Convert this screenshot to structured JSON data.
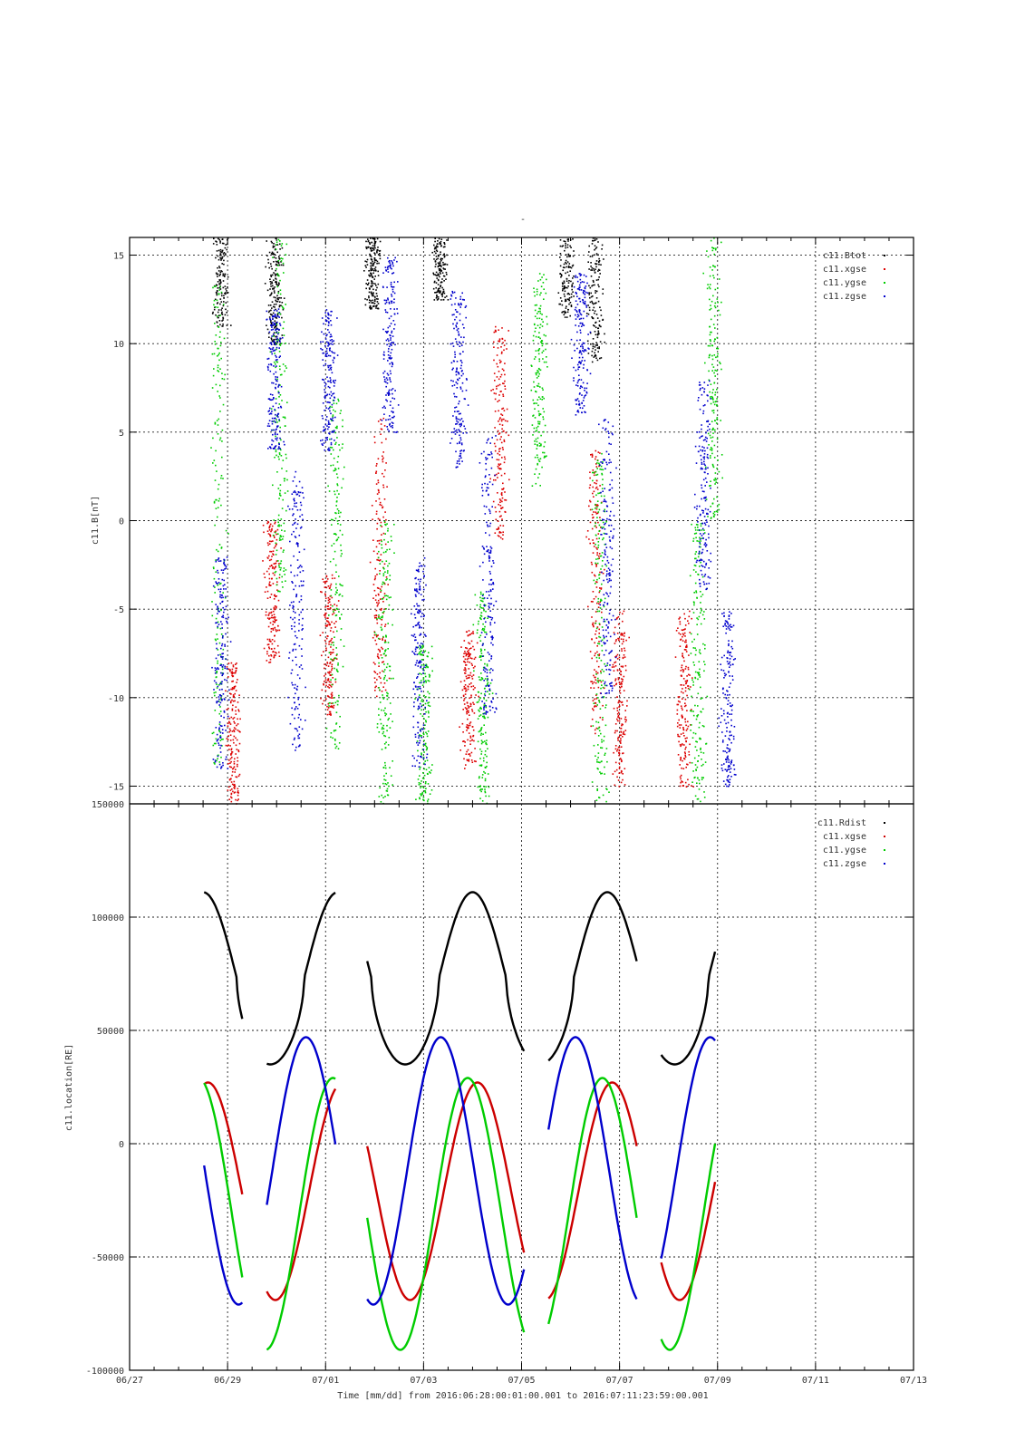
{
  "figure": {
    "title": "-",
    "xlabel": "Time [mm/dd]  from 2016:06:28:00:01:00.001  to  2016:07:11:23:59:00.001"
  },
  "chart_data": [
    {
      "type": "scatter",
      "ylabel": "c11.B[nT]",
      "xlim": [
        "06/27",
        "07/13"
      ],
      "ylim": [
        -16,
        16
      ],
      "yticks": [
        -15,
        -10,
        -5,
        0,
        5,
        10,
        15
      ],
      "legend_position": "top-right",
      "series": [
        {
          "name": "c11.Btot",
          "color": "#000000",
          "clusters": [
            [
              1.85,
              14,
              3
            ],
            [
              2.95,
              13,
              3
            ],
            [
              4.95,
              14,
              2
            ],
            [
              6.3,
              14.5,
              2
            ],
            [
              8.9,
              14.5,
              3
            ],
            [
              9.5,
              13,
              4
            ]
          ]
        },
        {
          "name": "c11.xgse",
          "color": "#dd0000",
          "clusters": [
            [
              2.1,
              -12,
              4
            ],
            [
              2.9,
              -4,
              4
            ],
            [
              4.05,
              -7,
              4
            ],
            [
              5.1,
              -2,
              8
            ],
            [
              6.9,
              -10,
              4
            ],
            [
              7.55,
              5,
              6
            ],
            [
              9.5,
              -4,
              8
            ],
            [
              10.0,
              -10,
              5
            ],
            [
              11.3,
              -10,
              5
            ]
          ]
        },
        {
          "name": "c11.ygse",
          "color": "#00cc00",
          "clusters": [
            [
              1.8,
              0,
              14
            ],
            [
              3.05,
              6,
              10
            ],
            [
              4.2,
              -3,
              10
            ],
            [
              5.2,
              -8,
              8
            ],
            [
              6.0,
              -12,
              5
            ],
            [
              7.2,
              -10,
              6
            ],
            [
              8.35,
              8,
              6
            ],
            [
              9.6,
              -6,
              10
            ],
            [
              11.6,
              -8,
              8
            ],
            [
              11.9,
              8,
              8
            ]
          ]
        },
        {
          "name": "c11.zgse",
          "color": "#0000cc",
          "clusters": [
            [
              1.85,
              -8,
              6
            ],
            [
              2.95,
              8,
              4
            ],
            [
              3.4,
              -5,
              8
            ],
            [
              4.05,
              8,
              4
            ],
            [
              5.3,
              10,
              5
            ],
            [
              5.9,
              -8,
              6
            ],
            [
              6.7,
              8,
              5
            ],
            [
              7.3,
              -3,
              8
            ],
            [
              9.2,
              10,
              4
            ],
            [
              9.75,
              -2,
              8
            ],
            [
              11.7,
              2,
              6
            ],
            [
              12.2,
              -10,
              5
            ]
          ]
        }
      ]
    },
    {
      "type": "line",
      "ylabel": "c11.location[RE]",
      "xlabel": "Time [mm/dd]  from 2016:06:28:00:01:00.001  to  2016:07:11:23:59:00.001",
      "xlim": [
        "06/27",
        "07/13"
      ],
      "x_ticks": [
        "06/27",
        "06/29",
        "07/01",
        "07/03",
        "07/05",
        "07/07",
        "07/09",
        "07/11",
        "07/13"
      ],
      "ylim": [
        -100000,
        150000
      ],
      "yticks": [
        -100000,
        -50000,
        0,
        50000,
        100000,
        150000
      ],
      "legend_position": "top-right",
      "segments": [
        {
          "x_start": 1.52,
          "x_end": 2.3
        },
        {
          "x_start": 2.8,
          "x_end": 4.2
        },
        {
          "x_start": 4.85,
          "x_end": 8.05
        },
        {
          "x_start": 8.55,
          "x_end": 10.35
        },
        {
          "x_start": 10.85,
          "x_end": 11.95
        }
      ],
      "series": [
        {
          "name": "c11.Rdist",
          "color": "#000000",
          "periodic": {
            "center": 73000,
            "amplitude": 38000,
            "period": 2.75,
            "phase_x": 1.5
          }
        },
        {
          "name": "c11.xgse",
          "color": "#cc0000",
          "periodic": {
            "center": -21000,
            "amplitude": 48000,
            "period": 2.75,
            "phase_x": 1.6
          }
        },
        {
          "name": "c11.ygse",
          "color": "#00cc00",
          "periodic": {
            "center": -31000,
            "amplitude": 60000,
            "period": 2.75,
            "phase_x": 1.4
          }
        },
        {
          "name": "c11.zgse",
          "color": "#0000cc",
          "periodic": {
            "center": -12000,
            "amplitude": 59000,
            "period": 2.75,
            "phase_x": 0.85
          }
        }
      ]
    }
  ]
}
